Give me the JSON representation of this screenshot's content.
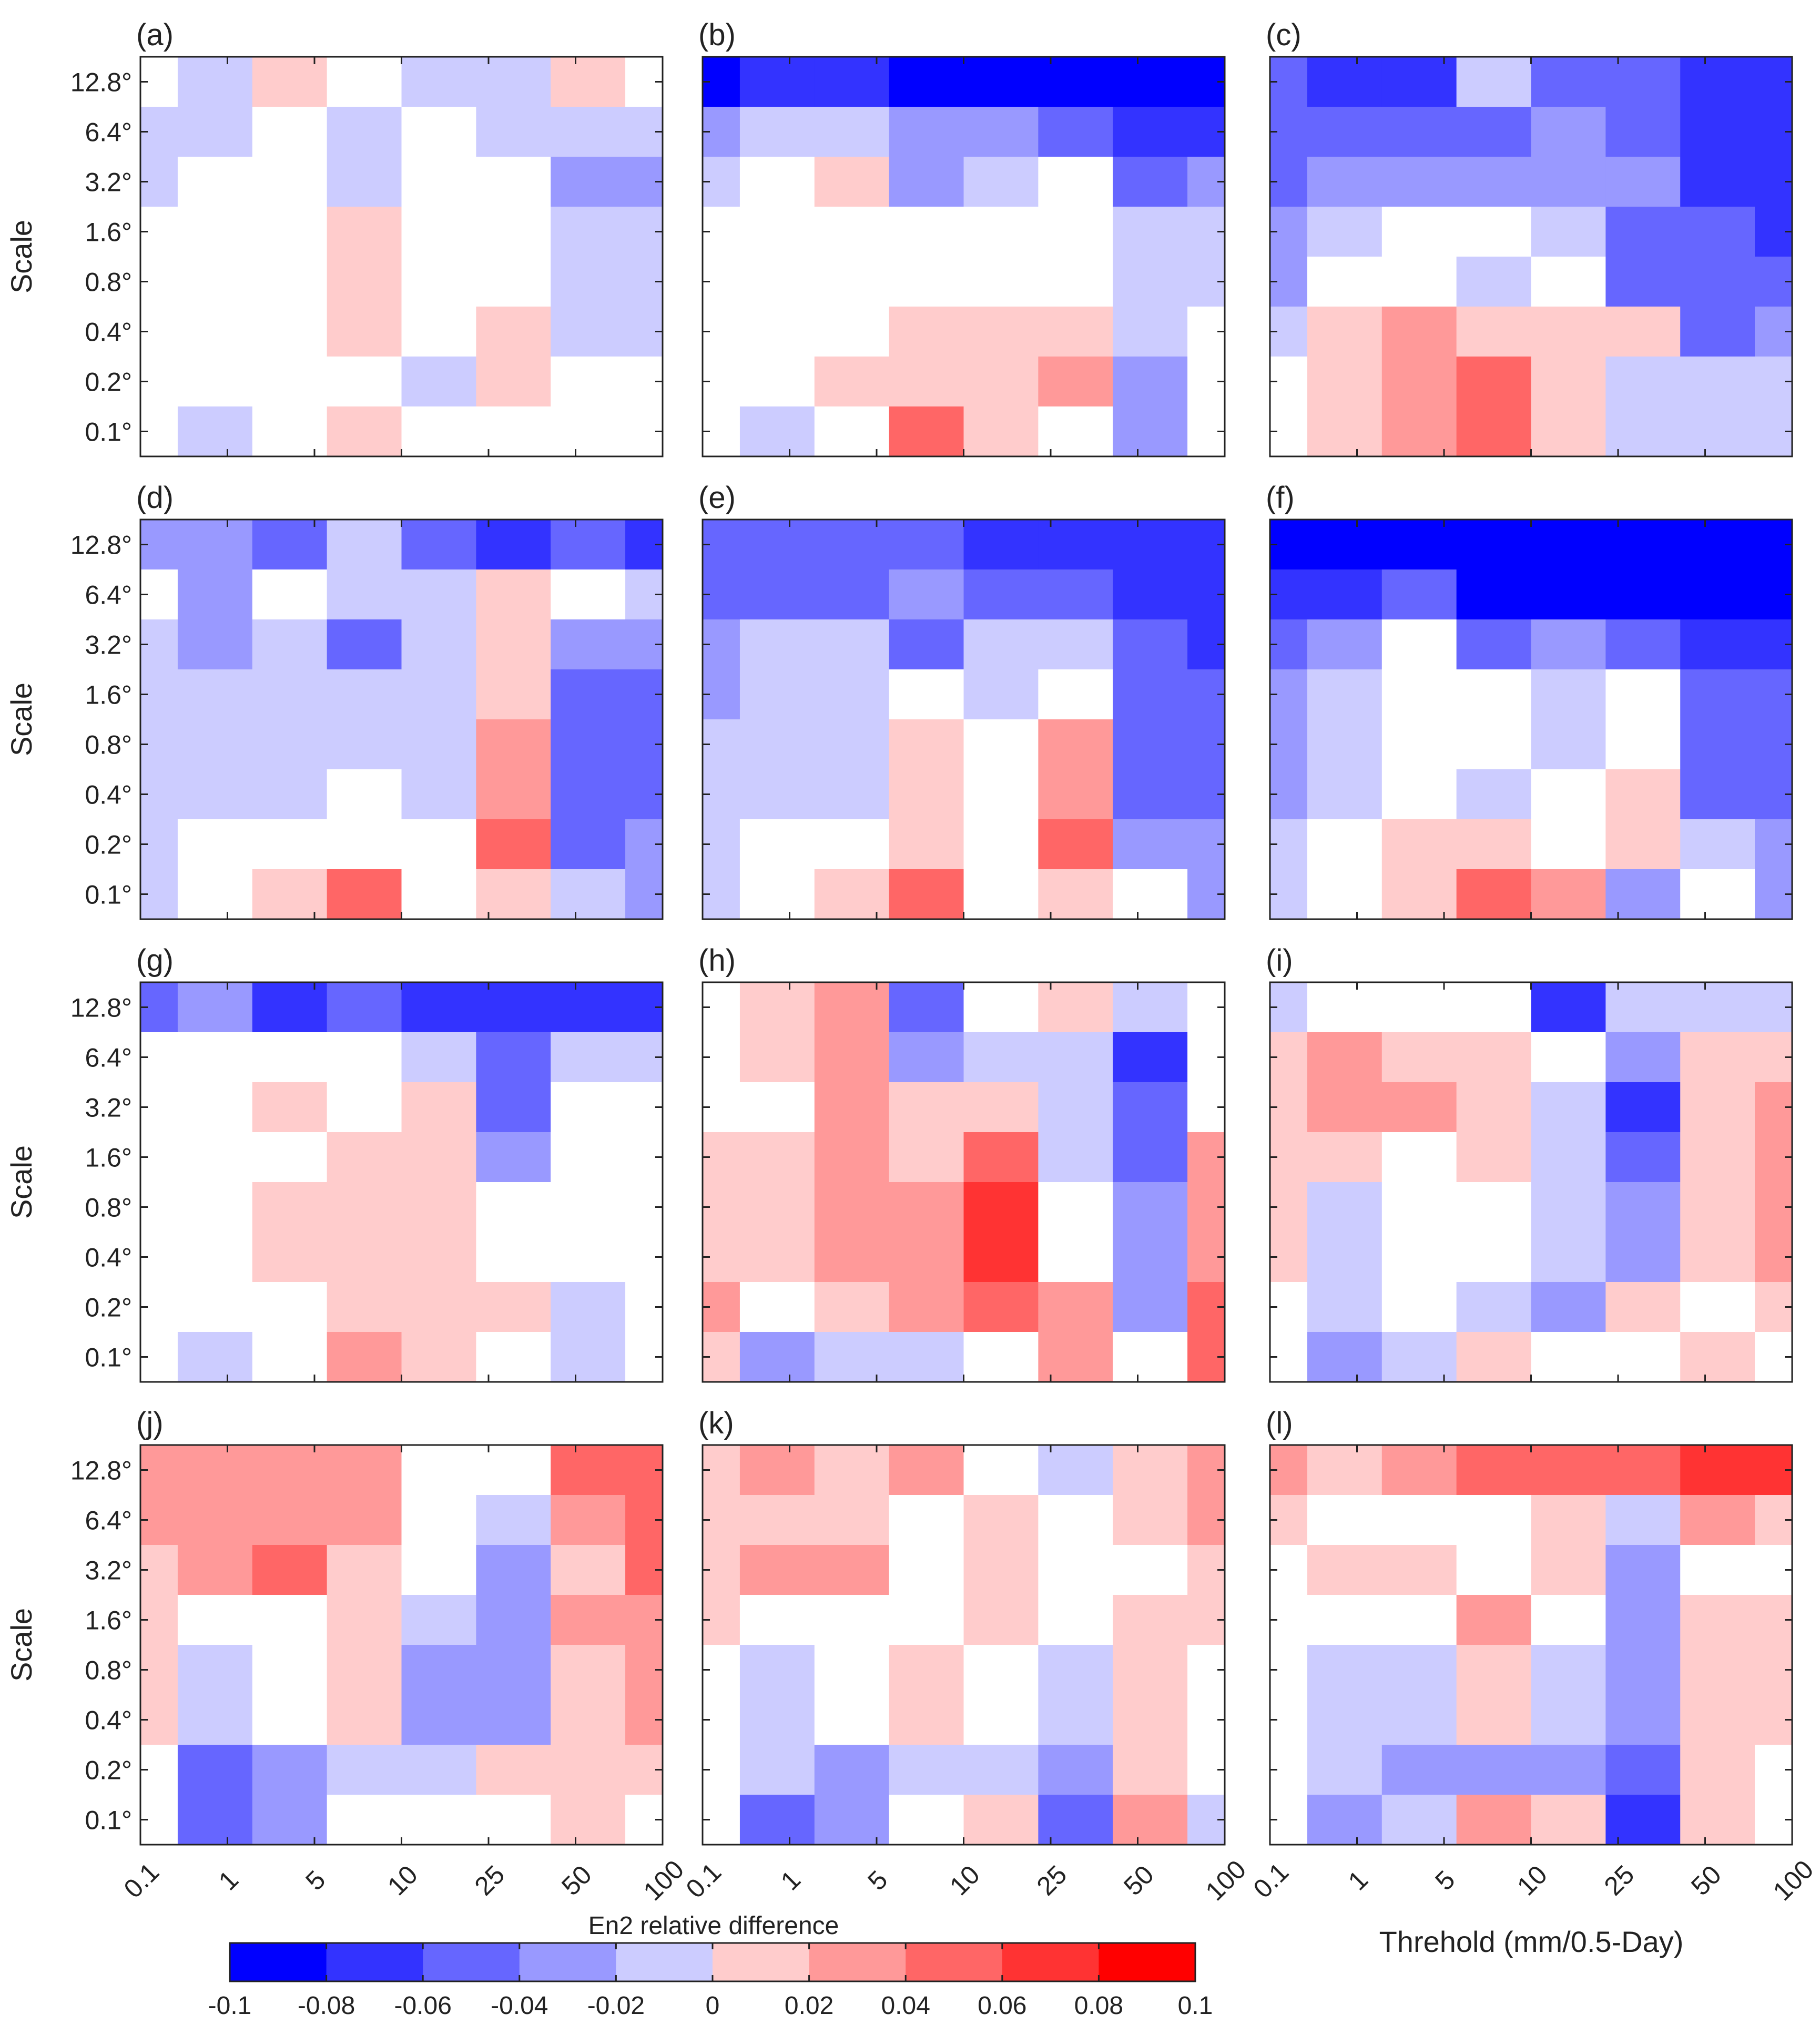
{
  "chart_data": {
    "type": "heatmap",
    "y_axis_label": "Scale",
    "y_ticks": [
      "12.8°",
      "6.4°",
      "3.2°",
      "1.6°",
      "0.8°",
      "0.4°",
      "0.2°",
      "0.1°"
    ],
    "x_ticks": [
      "0.1",
      "1",
      "5",
      "10",
      "25",
      "50",
      "100"
    ],
    "x_axis_label": "Threhold (mm/0.5-Day)",
    "colorbar": {
      "label": "En2 relative difference",
      "range": [
        -0.1,
        0.1
      ],
      "ticks": [
        "-0.1",
        "-0.08",
        "-0.06",
        "-0.04",
        "-0.02",
        "0",
        "0.02",
        "0.04",
        "0.06",
        "0.08",
        "0.1"
      ],
      "colors": [
        "#0000ff",
        "#3333ff",
        "#6666ff",
        "#9999ff",
        "#ccccff",
        "#ffffff",
        "#ffcccc",
        "#ff9999",
        "#ff6666",
        "#ff3333",
        "#ff0000"
      ]
    },
    "cell_column_edges_in_tick_units": [
      0,
      0.5,
      1.5,
      2.5,
      3.5,
      4.5,
      5.5,
      6.5,
      7
    ],
    "panels": [
      {
        "label": "(a)",
        "rows": [
          [
            0,
            -0.02,
            0.02,
            0,
            -0.02,
            -0.02,
            0.02,
            0
          ],
          [
            -0.02,
            -0.02,
            0,
            -0.02,
            0,
            -0.02,
            -0.02,
            -0.02
          ],
          [
            -0.02,
            0,
            0,
            -0.02,
            0,
            0,
            -0.04,
            -0.04
          ],
          [
            0,
            0,
            0,
            0.02,
            0,
            0,
            -0.02,
            -0.02
          ],
          [
            0,
            0,
            0,
            0.02,
            0,
            0,
            -0.02,
            -0.02
          ],
          [
            0,
            0,
            0,
            0.02,
            0,
            0.02,
            -0.02,
            -0.02
          ],
          [
            0,
            0,
            0,
            0,
            -0.02,
            0.02,
            0,
            0
          ],
          [
            0,
            -0.02,
            0,
            0.02,
            0,
            0,
            0,
            0
          ]
        ]
      },
      {
        "label": "(b)",
        "rows": [
          [
            -0.1,
            -0.08,
            -0.08,
            -0.1,
            -0.1,
            -0.1,
            -0.1,
            -0.1
          ],
          [
            -0.04,
            -0.02,
            -0.02,
            -0.04,
            -0.04,
            -0.06,
            -0.08,
            -0.08
          ],
          [
            -0.02,
            0,
            0.02,
            -0.04,
            -0.02,
            0,
            -0.06,
            -0.04
          ],
          [
            0,
            0,
            0,
            0,
            0,
            0,
            -0.02,
            -0.02
          ],
          [
            0,
            0,
            0,
            0,
            0,
            0,
            -0.02,
            -0.02
          ],
          [
            0,
            0,
            0,
            0.02,
            0.02,
            0.02,
            -0.02,
            0
          ],
          [
            0,
            0,
            0.02,
            0.02,
            0.02,
            0.04,
            -0.04,
            0
          ],
          [
            0,
            -0.02,
            0,
            0.06,
            0.02,
            0,
            -0.04,
            0
          ]
        ]
      },
      {
        "label": "(c)",
        "rows": [
          [
            -0.06,
            -0.08,
            -0.08,
            -0.02,
            -0.06,
            -0.06,
            -0.08,
            -0.08
          ],
          [
            -0.06,
            -0.06,
            -0.06,
            -0.06,
            -0.04,
            -0.06,
            -0.08,
            -0.08
          ],
          [
            -0.06,
            -0.04,
            -0.04,
            -0.04,
            -0.04,
            -0.04,
            -0.08,
            -0.08
          ],
          [
            -0.04,
            -0.02,
            0,
            0,
            -0.02,
            -0.06,
            -0.06,
            -0.08
          ],
          [
            -0.04,
            0,
            0,
            -0.02,
            0,
            -0.06,
            -0.06,
            -0.06
          ],
          [
            -0.02,
            0.02,
            0.04,
            0.02,
            0.02,
            0.02,
            -0.06,
            -0.04
          ],
          [
            0,
            0.02,
            0.04,
            0.06,
            0.02,
            -0.02,
            -0.02,
            -0.02
          ],
          [
            0,
            0.02,
            0.04,
            0.06,
            0.02,
            -0.02,
            -0.02,
            -0.02
          ]
        ]
      },
      {
        "label": "(d)",
        "rows": [
          [
            -0.04,
            -0.04,
            -0.06,
            -0.02,
            -0.06,
            -0.08,
            -0.06,
            -0.08
          ],
          [
            0,
            -0.04,
            0,
            -0.02,
            -0.02,
            0.02,
            0,
            -0.02
          ],
          [
            -0.02,
            -0.04,
            -0.02,
            -0.06,
            -0.02,
            0.02,
            -0.04,
            -0.04
          ],
          [
            -0.02,
            -0.02,
            -0.02,
            -0.02,
            -0.02,
            0.02,
            -0.06,
            -0.06
          ],
          [
            -0.02,
            -0.02,
            -0.02,
            -0.02,
            -0.02,
            0.04,
            -0.06,
            -0.06
          ],
          [
            -0.02,
            -0.02,
            -0.02,
            0,
            -0.02,
            0.04,
            -0.06,
            -0.06
          ],
          [
            -0.02,
            0,
            0,
            0,
            0,
            0.06,
            -0.06,
            -0.04
          ],
          [
            -0.02,
            0,
            0.02,
            0.06,
            0,
            0.02,
            -0.02,
            -0.04
          ]
        ]
      },
      {
        "label": "(e)",
        "rows": [
          [
            -0.06,
            -0.06,
            -0.06,
            -0.06,
            -0.08,
            -0.08,
            -0.08,
            -0.08
          ],
          [
            -0.06,
            -0.06,
            -0.06,
            -0.04,
            -0.06,
            -0.06,
            -0.08,
            -0.08
          ],
          [
            -0.04,
            -0.02,
            -0.02,
            -0.06,
            -0.02,
            -0.02,
            -0.06,
            -0.08
          ],
          [
            -0.04,
            -0.02,
            -0.02,
            0,
            -0.02,
            0,
            -0.06,
            -0.06
          ],
          [
            -0.02,
            -0.02,
            -0.02,
            0.02,
            0,
            0.04,
            -0.06,
            -0.06
          ],
          [
            -0.02,
            -0.02,
            -0.02,
            0.02,
            0,
            0.04,
            -0.06,
            -0.06
          ],
          [
            -0.02,
            0,
            0,
            0.02,
            0,
            0.06,
            -0.04,
            -0.04
          ],
          [
            -0.02,
            0,
            0.02,
            0.06,
            0,
            0.02,
            0,
            -0.04
          ]
        ]
      },
      {
        "label": "(f)",
        "rows": [
          [
            -0.1,
            -0.1,
            -0.1,
            -0.1,
            -0.1,
            -0.1,
            -0.1,
            -0.1
          ],
          [
            -0.08,
            -0.08,
            -0.06,
            -0.1,
            -0.1,
            -0.1,
            -0.1,
            -0.1
          ],
          [
            -0.06,
            -0.04,
            0,
            -0.06,
            -0.04,
            -0.06,
            -0.08,
            -0.08
          ],
          [
            -0.04,
            -0.02,
            0,
            0,
            -0.02,
            0,
            -0.06,
            -0.06
          ],
          [
            -0.04,
            -0.02,
            0,
            0,
            -0.02,
            0,
            -0.06,
            -0.06
          ],
          [
            -0.04,
            -0.02,
            0,
            -0.02,
            0,
            0.02,
            -0.06,
            -0.06
          ],
          [
            -0.02,
            0,
            0.02,
            0.02,
            0,
            0.02,
            -0.02,
            -0.04
          ],
          [
            -0.02,
            0,
            0.02,
            0.06,
            0.04,
            -0.04,
            0,
            -0.04
          ]
        ]
      },
      {
        "label": "(g)",
        "rows": [
          [
            -0.06,
            -0.04,
            -0.08,
            -0.06,
            -0.08,
            -0.08,
            -0.08,
            -0.08
          ],
          [
            0,
            0,
            0,
            0,
            -0.02,
            -0.06,
            -0.02,
            -0.02
          ],
          [
            0,
            0,
            0.02,
            0,
            0.02,
            -0.06,
            0,
            0
          ],
          [
            0,
            0,
            0,
            0.02,
            0.02,
            -0.04,
            0,
            0
          ],
          [
            0,
            0,
            0.02,
            0.02,
            0.02,
            0,
            0,
            0
          ],
          [
            0,
            0,
            0.02,
            0.02,
            0.02,
            0,
            0,
            0
          ],
          [
            0,
            0,
            0,
            0.02,
            0.02,
            0.02,
            -0.02,
            0
          ],
          [
            0,
            -0.02,
            0,
            0.04,
            0.02,
            0,
            -0.02,
            0
          ]
        ]
      },
      {
        "label": "(h)",
        "rows": [
          [
            0,
            0.02,
            0.04,
            -0.06,
            0,
            0.02,
            -0.02,
            0
          ],
          [
            0,
            0.02,
            0.04,
            -0.04,
            -0.02,
            -0.02,
            -0.08,
            0
          ],
          [
            0,
            0,
            0.04,
            0.02,
            0.02,
            -0.02,
            -0.06,
            0
          ],
          [
            0.02,
            0.02,
            0.04,
            0.02,
            0.06,
            -0.02,
            -0.06,
            0.04
          ],
          [
            0.02,
            0.02,
            0.04,
            0.04,
            0.08,
            0,
            -0.04,
            0.04
          ],
          [
            0.02,
            0.02,
            0.04,
            0.04,
            0.08,
            0,
            -0.04,
            0.04
          ],
          [
            0.04,
            0,
            0.02,
            0.04,
            0.06,
            0.04,
            -0.04,
            0.06
          ],
          [
            0.02,
            -0.04,
            -0.02,
            -0.02,
            0,
            0.04,
            0,
            0.06
          ]
        ]
      },
      {
        "label": "(i)",
        "rows": [
          [
            -0.02,
            0,
            0,
            0,
            -0.08,
            -0.02,
            -0.02,
            -0.02
          ],
          [
            0.02,
            0.04,
            0.02,
            0.02,
            0,
            -0.04,
            0.02,
            0.02
          ],
          [
            0.02,
            0.04,
            0.04,
            0.02,
            -0.02,
            -0.08,
            0.02,
            0.04
          ],
          [
            0.02,
            0.02,
            0,
            0.02,
            -0.02,
            -0.06,
            0.02,
            0.04
          ],
          [
            0.02,
            -0.02,
            0,
            0,
            -0.02,
            -0.04,
            0.02,
            0.04
          ],
          [
            0.02,
            -0.02,
            0,
            0,
            -0.02,
            -0.04,
            0.02,
            0.04
          ],
          [
            0,
            -0.02,
            0,
            -0.02,
            -0.04,
            0.02,
            0,
            0.02
          ],
          [
            0,
            -0.04,
            -0.02,
            0.02,
            0,
            0,
            0.02,
            0
          ]
        ]
      },
      {
        "label": "(j)",
        "rows": [
          [
            0.04,
            0.04,
            0.04,
            0.04,
            0,
            0,
            0.06,
            0.06
          ],
          [
            0.04,
            0.04,
            0.04,
            0.04,
            0,
            -0.02,
            0.04,
            0.06
          ],
          [
            0.02,
            0.04,
            0.06,
            0.02,
            0,
            -0.04,
            0.02,
            0.06
          ],
          [
            0.02,
            0,
            0,
            0.02,
            -0.02,
            -0.04,
            0.04,
            0.04
          ],
          [
            0.02,
            -0.02,
            0,
            0.02,
            -0.04,
            -0.04,
            0.02,
            0.04
          ],
          [
            0.02,
            -0.02,
            0,
            0.02,
            -0.04,
            -0.04,
            0.02,
            0.04
          ],
          [
            0,
            -0.06,
            -0.04,
            -0.02,
            -0.02,
            0.02,
            0.02,
            0.02
          ],
          [
            0,
            -0.06,
            -0.04,
            0,
            0,
            0,
            0.02,
            0
          ]
        ]
      },
      {
        "label": "(k)",
        "rows": [
          [
            0.02,
            0.04,
            0.02,
            0.04,
            0,
            -0.02,
            0.02,
            0.04
          ],
          [
            0.02,
            0.02,
            0.02,
            0,
            0.02,
            0,
            0.02,
            0.04
          ],
          [
            0.02,
            0.04,
            0.04,
            0,
            0.02,
            0,
            0,
            0.02
          ],
          [
            0.02,
            0,
            0,
            0,
            0.02,
            0,
            0.02,
            0.02
          ],
          [
            0,
            -0.02,
            0,
            0.02,
            0,
            -0.02,
            0.02,
            0
          ],
          [
            0,
            -0.02,
            0,
            0.02,
            0,
            -0.02,
            0.02,
            0
          ],
          [
            0,
            -0.02,
            -0.04,
            -0.02,
            -0.02,
            -0.04,
            0.02,
            0
          ],
          [
            0,
            -0.06,
            -0.04,
            0,
            0.02,
            -0.06,
            0.04,
            -0.02
          ]
        ]
      },
      {
        "label": "(l)",
        "rows": [
          [
            0.04,
            0.02,
            0.04,
            0.06,
            0.06,
            0.06,
            0.08,
            0.08
          ],
          [
            0.02,
            0,
            0,
            0,
            0.02,
            -0.02,
            0.04,
            0.02
          ],
          [
            0,
            0.02,
            0.02,
            0,
            0.02,
            -0.04,
            0,
            0
          ],
          [
            0,
            0,
            0,
            0.04,
            0,
            -0.04,
            0.02,
            0.02
          ],
          [
            0,
            -0.02,
            -0.02,
            0.02,
            -0.02,
            -0.04,
            0.02,
            0.02
          ],
          [
            0,
            -0.02,
            -0.02,
            0.02,
            -0.02,
            -0.04,
            0.02,
            0.02
          ],
          [
            0,
            -0.02,
            -0.04,
            -0.04,
            -0.04,
            -0.06,
            0.02,
            0
          ],
          [
            0,
            -0.04,
            -0.02,
            0.04,
            0.02,
            -0.08,
            0.02,
            0
          ]
        ]
      }
    ]
  }
}
